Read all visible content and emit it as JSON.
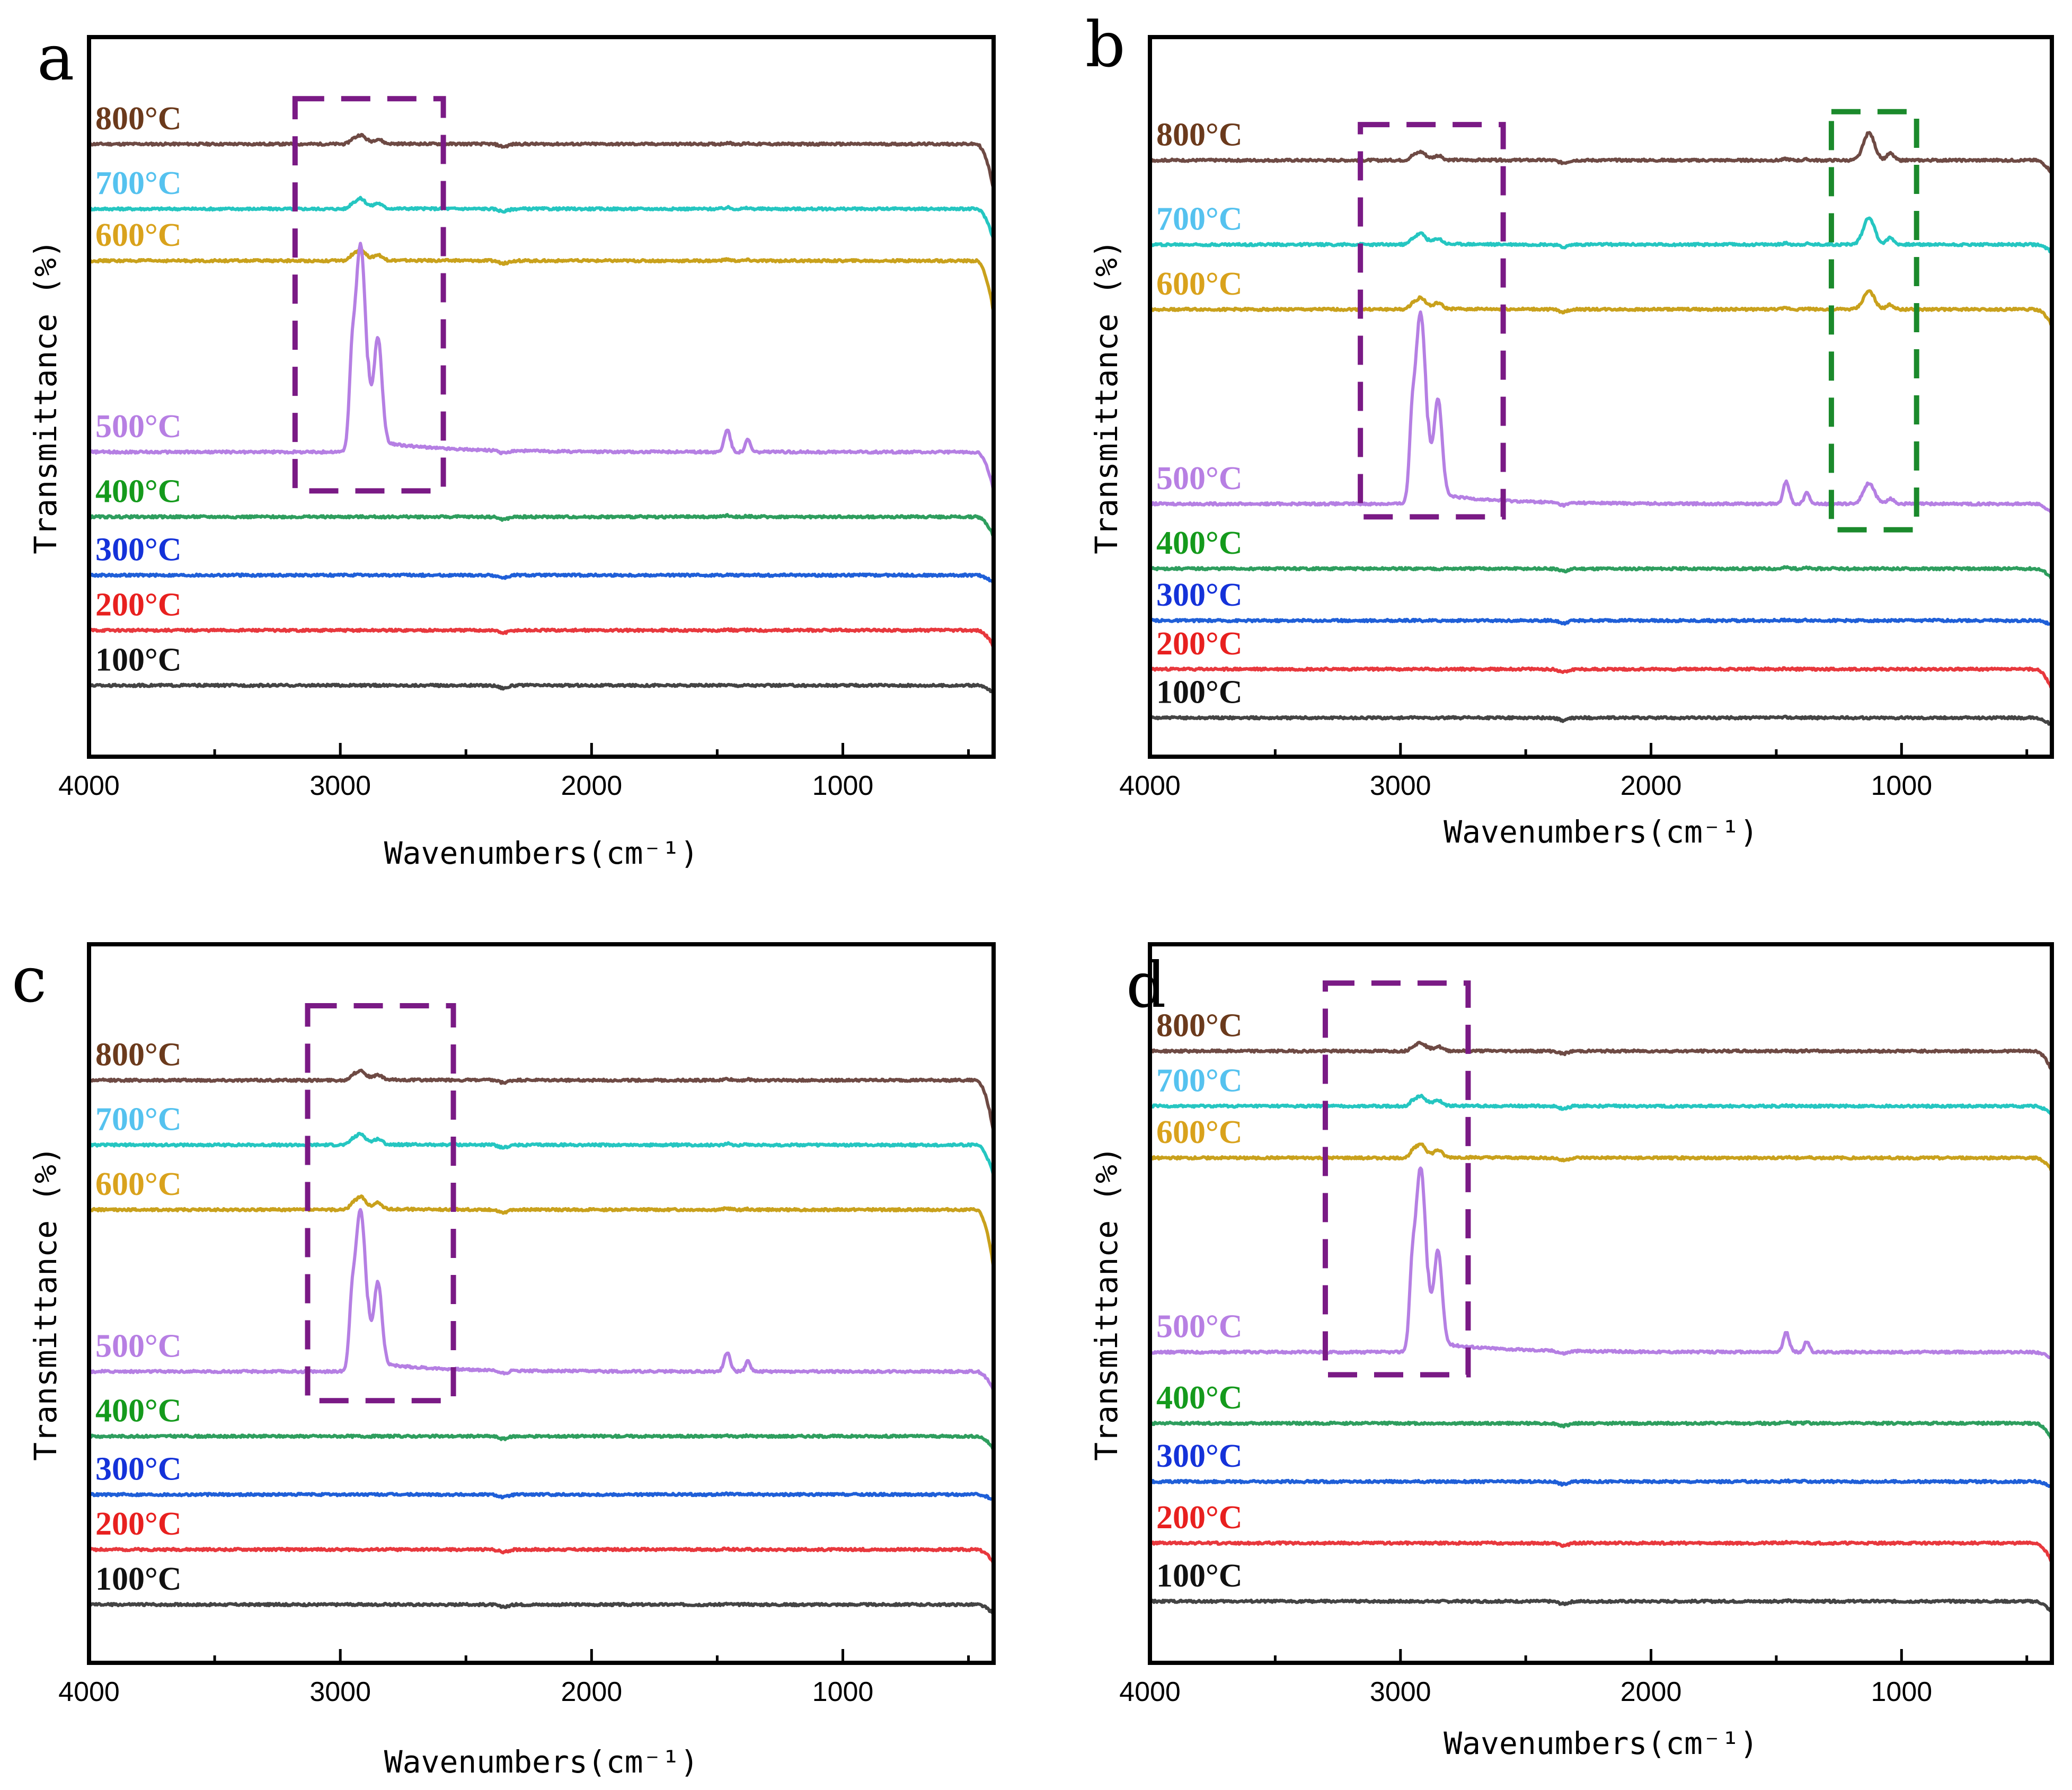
{
  "colors": {
    "100°C": "#444444",
    "200°C": "#e8383d",
    "300°C": "#1f5fd8",
    "400°C": "#2e9e5e",
    "500°C": "#b57fe3",
    "600°C": "#c9a11c",
    "700°C": "#25c6c1",
    "800°C": "#6e4a44"
  },
  "label_colors": {
    "100°C": "#111111",
    "200°C": "#e8201f",
    "300°C": "#1432d9",
    "400°C": "#149a1c",
    "500°C": "#b77fe3",
    "600°C": "#d9a21c",
    "700°C": "#55c2ef",
    "800°C": "#6b3a1c"
  },
  "box_colors": {
    "purple": "#7a1a85",
    "green": "#1b8a2c"
  },
  "chart_data": [
    {
      "type": "line",
      "panel": "a",
      "xlabel": "Wavenumbers",
      "xlabel_unit": "(cm⁻¹)",
      "ylabel": "Transmittance (%)",
      "xlim": [
        4000,
        400
      ],
      "xticks": [
        4000,
        3000,
        2000,
        1000
      ],
      "series": [
        {
          "name": "800°C",
          "offset": 7.95,
          "ch": 0.14,
          "sat": 0.7,
          "si": 0.02,
          "sio": 0
        },
        {
          "name": "700°C",
          "offset": 6.95,
          "ch": 0.16,
          "sat": 0.8,
          "si": 0.02,
          "sio": 0
        },
        {
          "name": "600°C",
          "offset": 6.15,
          "ch": 0.17,
          "sat": 0.8,
          "si": 0.02,
          "sio": 0
        },
        {
          "name": "500°C",
          "offset": 3.2,
          "ch": 3.2,
          "sat": 1.0,
          "si": 0.35,
          "sio": 0
        },
        {
          "name": "400°C",
          "offset": 2.2,
          "ch": 0,
          "sat": 0.3,
          "si": 0.02,
          "sio": 0
        },
        {
          "name": "300°C",
          "offset": 1.3,
          "ch": 0,
          "sat": 0.2,
          "si": 0.01,
          "sio": 0
        },
        {
          "name": "200°C",
          "offset": 0.45,
          "ch": 0,
          "sat": 0.25,
          "si": 0.01,
          "sio": 0
        },
        {
          "name": "100°C",
          "offset": -0.4,
          "ch": 0,
          "sat": 0.2,
          "si": 0.01,
          "sio": 0
        }
      ],
      "annotations": [
        {
          "color": "purple",
          "x": [
            3180,
            2590
          ],
          "y": [
            2.6,
            8.65
          ]
        }
      ]
    },
    {
      "type": "line",
      "panel": "b",
      "xlabel": "Wavenumbers",
      "xlabel_unit": "(cm⁻¹)",
      "ylabel": "Transmittance (%)",
      "xlim": [
        4000,
        400
      ],
      "xticks": [
        4000,
        3000,
        2000,
        1000
      ],
      "series": [
        {
          "name": "800°C",
          "offset": 7.7,
          "ch": 0.13,
          "sat": 0.2,
          "si": 0.02,
          "sio": 0.42
        },
        {
          "name": "700°C",
          "offset": 6.4,
          "ch": 0.17,
          "sat": 0.2,
          "si": 0.02,
          "sio": 0.42
        },
        {
          "name": "600°C",
          "offset": 5.4,
          "ch": 0.18,
          "sat": 0.25,
          "si": 0.02,
          "sio": 0.28
        },
        {
          "name": "500°C",
          "offset": 2.4,
          "ch": 2.95,
          "sat": 0.25,
          "si": 0.35,
          "sio": 0.32
        },
        {
          "name": "400°C",
          "offset": 1.4,
          "ch": 0,
          "sat": 0.15,
          "si": 0.02,
          "sio": 0
        },
        {
          "name": "300°C",
          "offset": 0.6,
          "ch": 0,
          "sat": 0.12,
          "si": 0.01,
          "sio": 0
        },
        {
          "name": "200°C",
          "offset": -0.15,
          "ch": 0,
          "sat": 0.3,
          "si": 0.01,
          "sio": 0
        },
        {
          "name": "100°C",
          "offset": -0.9,
          "ch": 0,
          "sat": 0.2,
          "si": 0.01,
          "sio": 0
        }
      ],
      "annotations": [
        {
          "color": "purple",
          "x": [
            3160,
            2590
          ],
          "y": [
            2.2,
            8.25
          ]
        },
        {
          "color": "green",
          "x": [
            1280,
            940
          ],
          "y": [
            2.0,
            8.45
          ]
        }
      ]
    },
    {
      "type": "line",
      "panel": "c",
      "xlabel": "Wavenumbers",
      "xlabel_unit": "(cm⁻¹)",
      "ylabel": "Transmittance (%)",
      "xlim": [
        4000,
        400
      ],
      "xticks": [
        4000,
        3000,
        2000,
        1000
      ],
      "series": [
        {
          "name": "800°C",
          "offset": 7.5,
          "ch": 0.15,
          "sat": 0.8,
          "si": 0.02,
          "sio": 0
        },
        {
          "name": "700°C",
          "offset": 6.5,
          "ch": 0.17,
          "sat": 0.8,
          "si": 0.02,
          "sio": 0
        },
        {
          "name": "600°C",
          "offset": 5.5,
          "ch": 0.2,
          "sat": 0.9,
          "si": 0.02,
          "sio": 0
        },
        {
          "name": "500°C",
          "offset": 3.0,
          "ch": 2.5,
          "sat": 0.5,
          "si": 0.3,
          "sio": 0
        },
        {
          "name": "400°C",
          "offset": 2.0,
          "ch": 0,
          "sat": 0.2,
          "si": 0.01,
          "sio": 0
        },
        {
          "name": "300°C",
          "offset": 1.1,
          "ch": 0,
          "sat": 0.15,
          "si": 0.01,
          "sio": 0
        },
        {
          "name": "200°C",
          "offset": 0.25,
          "ch": 0,
          "sat": 0.2,
          "si": 0.01,
          "sio": 0
        },
        {
          "name": "100°C",
          "offset": -0.6,
          "ch": 0,
          "sat": 0.25,
          "si": 0.01,
          "sio": 0
        }
      ],
      "annotations": [
        {
          "color": "purple",
          "x": [
            3130,
            2550
          ],
          "y": [
            2.55,
            8.65
          ]
        }
      ]
    },
    {
      "type": "line",
      "panel": "d",
      "xlabel": "Wavenumbers",
      "xlabel_unit": "(cm⁻¹)",
      "ylabel": "Transmittance (%)",
      "xlim": [
        4000,
        400
      ],
      "xticks": [
        4000,
        3000,
        2000,
        1000
      ],
      "series": [
        {
          "name": "800°C",
          "offset": 7.95,
          "ch": 0.13,
          "sat": 0.3,
          "si": 0.01,
          "sio": 0
        },
        {
          "name": "700°C",
          "offset": 7.1,
          "ch": 0.16,
          "sat": 0.25,
          "si": 0.01,
          "sio": 0
        },
        {
          "name": "600°C",
          "offset": 6.3,
          "ch": 0.22,
          "sat": 0.2,
          "si": 0.01,
          "sio": 0
        },
        {
          "name": "500°C",
          "offset": 3.3,
          "ch": 2.85,
          "sat": 0.2,
          "si": 0.3,
          "sio": 0
        },
        {
          "name": "400°C",
          "offset": 2.2,
          "ch": 0,
          "sat": 0.25,
          "si": 0.02,
          "sio": 0
        },
        {
          "name": "300°C",
          "offset": 1.3,
          "ch": 0,
          "sat": 0.15,
          "si": 0.01,
          "sio": 0
        },
        {
          "name": "200°C",
          "offset": 0.35,
          "ch": 0,
          "sat": 0.3,
          "si": 0.01,
          "sio": 0
        },
        {
          "name": "100°C",
          "offset": -0.55,
          "ch": 0,
          "sat": 0.3,
          "si": 0.01,
          "sio": 0
        }
      ],
      "annotations": [
        {
          "color": "purple",
          "x": [
            3300,
            2730
          ],
          "y": [
            2.95,
            9.0
          ]
        }
      ]
    }
  ]
}
